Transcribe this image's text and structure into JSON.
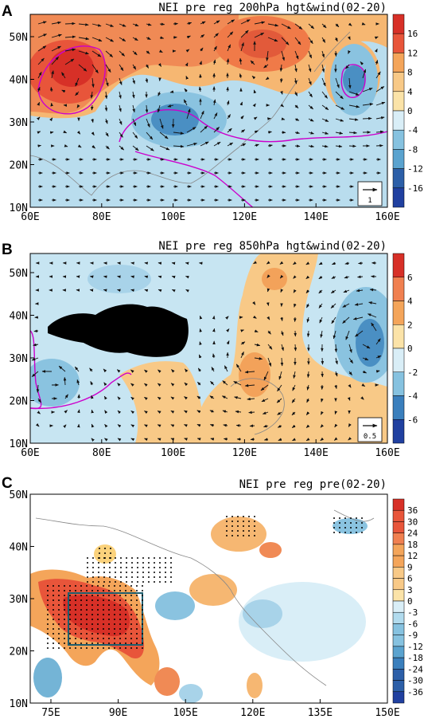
{
  "panels": [
    {
      "letter": "A",
      "title": "NEI pre reg 200hPa hgt&wind(02-20)",
      "lat_labels": [
        "50N",
        "40N",
        "30N",
        "20N",
        "10N"
      ],
      "lon_labels": [
        "60E",
        "80E",
        "100E",
        "120E",
        "140E",
        "160E"
      ],
      "colorbar_labels": [
        "16",
        "12",
        "8",
        "4",
        "0",
        "-4",
        "-8",
        "-12",
        "-16"
      ],
      "ref_vector_label": "1"
    },
    {
      "letter": "B",
      "title": "NEI pre reg 850hPa hgt&wind(02-20)",
      "lat_labels": [
        "50N",
        "40N",
        "30N",
        "20N",
        "10N"
      ],
      "lon_labels": [
        "60E",
        "80E",
        "100E",
        "120E",
        "140E",
        "160E"
      ],
      "colorbar_labels": [
        "6",
        "4",
        "2",
        "0",
        "-2",
        "-4",
        "-6"
      ],
      "ref_vector_label": "0.5"
    },
    {
      "letter": "C",
      "title": "NEI pre reg pre(02-20)",
      "lat_labels": [
        "50N",
        "40N",
        "30N",
        "20N",
        "10N"
      ],
      "lon_labels": [
        "75E",
        "90E",
        "105E",
        "120E",
        "135E",
        "150E"
      ],
      "colorbar_labels": [
        "36",
        "30",
        "24",
        "18",
        "12",
        "9",
        "6",
        "3",
        "0",
        "-3",
        "-6",
        "-9",
        "-12",
        "-18",
        "-24",
        "-30",
        "-36"
      ]
    }
  ],
  "colors": {
    "strong_positive": "#d73027",
    "positive": "#f4a55a",
    "weak_positive": "#fee090",
    "weak_negative": "#c6e6f2",
    "negative": "#74b4d6",
    "strong_negative": "#2c6fb0",
    "significance_contour": "#cc00cc",
    "box_outline": "#1f5f6f",
    "plateau_mask": "#000000"
  }
}
